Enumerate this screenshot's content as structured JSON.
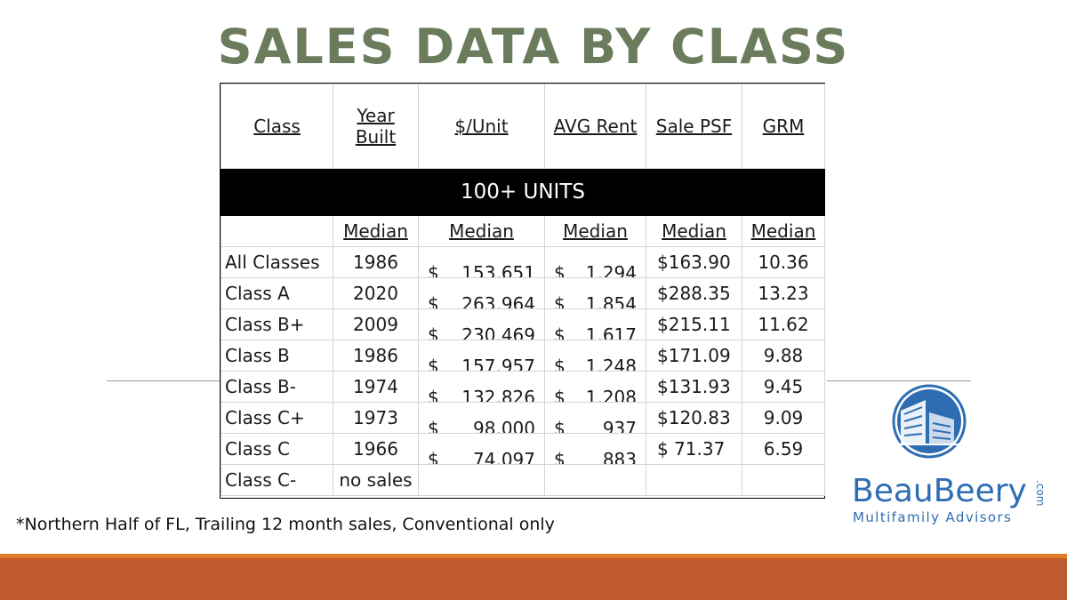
{
  "title": "SALES DATA BY CLASS",
  "table": {
    "headers": {
      "class": "Class",
      "year_built_line1": "Year",
      "year_built_line2": "Built",
      "per_unit": "$/Unit",
      "avg_rent": "AVG Rent",
      "sale_psf": "Sale PSF",
      "grm": "GRM"
    },
    "band_label": "100+ UNITS",
    "median_label": "Median",
    "currency_symbol": "$",
    "rows": [
      {
        "class": "All Classes",
        "year": "1986",
        "per_unit": "153,651",
        "avg_rent": "1,294",
        "sale_psf": "$163.90",
        "grm": "10.36"
      },
      {
        "class": "Class A",
        "year": "2020",
        "per_unit": "263,964",
        "avg_rent": "1,854",
        "sale_psf": "$288.35",
        "grm": "13.23"
      },
      {
        "class": "Class B+",
        "year": "2009",
        "per_unit": "230,469",
        "avg_rent": "1,617",
        "sale_psf": "$215.11",
        "grm": "11.62"
      },
      {
        "class": "Class B",
        "year": "1986",
        "per_unit": "157,957",
        "avg_rent": "1,248",
        "sale_psf": "$171.09",
        "grm": "9.88"
      },
      {
        "class": "Class B-",
        "year": "1974",
        "per_unit": "132,826",
        "avg_rent": "1,208",
        "sale_psf": "$131.93",
        "grm": "9.45"
      },
      {
        "class": "Class C+",
        "year": "1973",
        "per_unit": "98,000",
        "avg_rent": "937",
        "sale_psf": "$120.83",
        "grm": "9.09"
      },
      {
        "class": "Class C",
        "year": "1966",
        "per_unit": "74,097",
        "avg_rent": "883",
        "sale_psf": "$ 71.37",
        "grm": "6.59"
      },
      {
        "class": "Class C-",
        "year": "no sales",
        "per_unit": "",
        "avg_rent": "",
        "sale_psf": "",
        "grm": ""
      }
    ]
  },
  "footnote": "*Northern Half of FL, Trailing 12 month sales, Conventional only",
  "logo": {
    "brand": "BeauBeery",
    "suffix": ".com",
    "tagline": "Multifamily Advisors"
  },
  "colors": {
    "title": "#6b7c5c",
    "logo_blue": "#2f6db3",
    "bottom_bar": "#bf5a2c",
    "bottom_bar_accent": "#e07b2a"
  }
}
